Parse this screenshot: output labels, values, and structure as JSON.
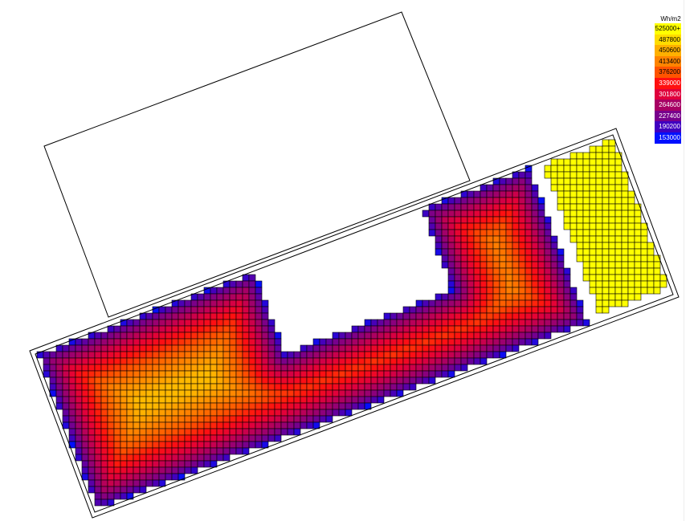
{
  "chart_data": {
    "type": "heatmap",
    "unit": "Wh/m2",
    "legend": {
      "title": "Wh/m2",
      "placement": "top-right",
      "items": [
        {
          "label": "525000+",
          "color": "#ffff00"
        },
        {
          "label": "487800",
          "color": "#ffdc00"
        },
        {
          "label": "450600",
          "color": "#ffb000"
        },
        {
          "label": "413400",
          "color": "#ff8400"
        },
        {
          "label": "376200",
          "color": "#ff5400"
        },
        {
          "label": "339000",
          "color": "#ff1010"
        },
        {
          "label": "301800",
          "color": "#e0003c"
        },
        {
          "label": "264600",
          "color": "#a80064"
        },
        {
          "label": "227400",
          "color": "#78008c"
        },
        {
          "label": "190200",
          "color": "#4000c0"
        },
        {
          "label": "153000",
          "color": "#0010ff"
        }
      ]
    },
    "range": [
      153000,
      525000
    ]
  }
}
